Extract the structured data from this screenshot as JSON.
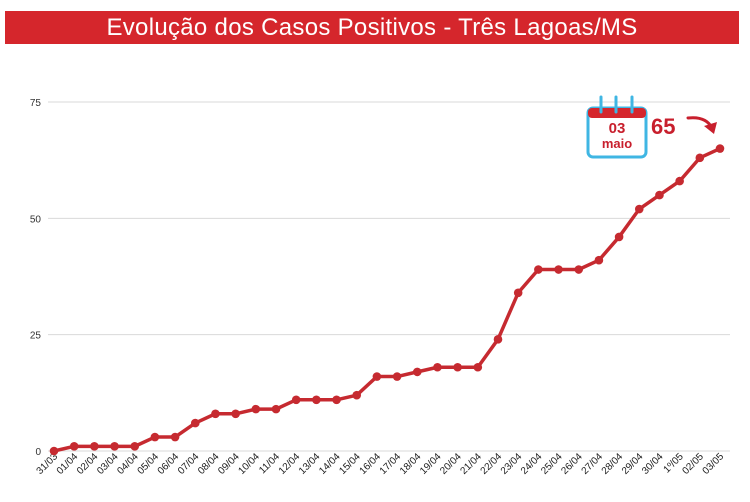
{
  "header": {
    "title": "Evolução dos Casos Positivos - Três Lagoas/MS"
  },
  "colors": {
    "title_bg": "#d5262c",
    "line": "#c62a30",
    "grid": "#d9d9d9",
    "calendar_blue": "#3fb6e3"
  },
  "callout": {
    "day": "03",
    "month": "maio",
    "value": "65",
    "icon": "calendar-icon"
  },
  "chart_data": {
    "type": "line",
    "title": "Evolução dos Casos Positivos - Três Lagoas/MS",
    "xlabel": "",
    "ylabel": "",
    "ylim": [
      0,
      75
    ],
    "yticks": [
      0,
      25,
      50,
      75
    ],
    "grid": true,
    "categories": [
      "31/03",
      "01/04",
      "02/04",
      "03/04",
      "04/04",
      "05/04",
      "06/04",
      "07/04",
      "08/04",
      "09/04",
      "10/04",
      "11/04",
      "12/04",
      "13/04",
      "14/04",
      "15/04",
      "16/04",
      "17/04",
      "18/04",
      "19/04",
      "20/04",
      "21/04",
      "22/04",
      "23/04",
      "24/04",
      "25/04",
      "26/04",
      "27/04",
      "28/04",
      "29/04",
      "30/04",
      "1º/05",
      "02/05",
      "03/05"
    ],
    "series": [
      {
        "values": [
          0,
          1,
          1,
          1,
          1,
          3,
          3,
          6,
          8,
          8,
          9,
          9,
          11,
          11,
          11,
          12,
          16,
          16,
          17,
          18,
          18,
          18,
          24,
          34,
          39,
          39,
          39,
          41,
          46,
          52,
          55,
          58,
          63,
          65
        ]
      }
    ]
  }
}
